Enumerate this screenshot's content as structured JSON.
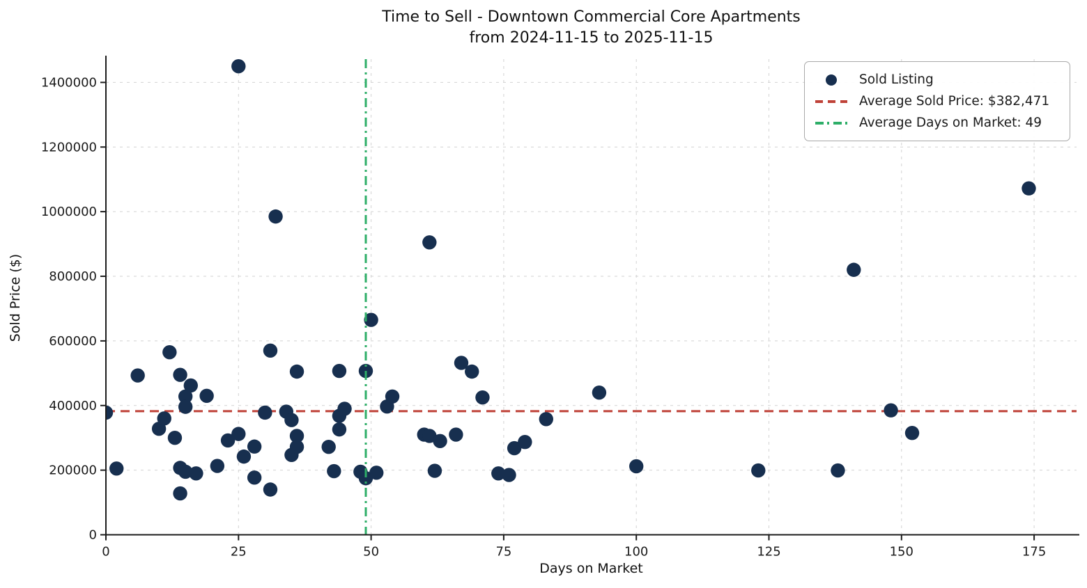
{
  "title": {
    "line1": "Time to Sell - Downtown Commercial Core Apartments",
    "line2": "from 2024-11-15 to 2025-11-15"
  },
  "colors": {
    "point": "#172f4f",
    "avg_price_line": "#bf4238",
    "avg_days_line": "#2eae68",
    "grid": "#d2d2d2",
    "spine": "#1c1c1c",
    "text": "#1a1a1a"
  },
  "chart_data": {
    "type": "scatter",
    "title": "Time to Sell - Downtown Commercial Core Apartments from 2024-11-15 to 2025-11-15",
    "xlabel": "Days on Market",
    "ylabel": "Sold Price ($)",
    "xlim": [
      0,
      183
    ],
    "ylim": [
      0,
      1472000
    ],
    "x_ticks": [
      0,
      25,
      50,
      75,
      100,
      125,
      150,
      175
    ],
    "y_ticks": [
      0,
      200000,
      400000,
      600000,
      800000,
      1000000,
      1200000,
      1400000
    ],
    "grid": true,
    "legend_position": "upper right",
    "series": [
      {
        "name": "Sold Listing",
        "type": "scatter",
        "color": "#172f4f",
        "points": [
          [
            0,
            378000
          ],
          [
            2,
            205000
          ],
          [
            6,
            493000
          ],
          [
            10,
            328000
          ],
          [
            11,
            360000
          ],
          [
            12,
            565000
          ],
          [
            13,
            300000
          ],
          [
            14,
            495000
          ],
          [
            14,
            207000
          ],
          [
            14,
            128000
          ],
          [
            15,
            428000
          ],
          [
            15,
            396000
          ],
          [
            15,
            195000
          ],
          [
            16,
            462000
          ],
          [
            17,
            190000
          ],
          [
            19,
            430000
          ],
          [
            21,
            213000
          ],
          [
            23,
            292000
          ],
          [
            25,
            1450000
          ],
          [
            25,
            312000
          ],
          [
            26,
            242000
          ],
          [
            28,
            273000
          ],
          [
            28,
            177000
          ],
          [
            30,
            378000
          ],
          [
            31,
            570000
          ],
          [
            31,
            140000
          ],
          [
            32,
            985000
          ],
          [
            34,
            381000
          ],
          [
            35,
            355000
          ],
          [
            35,
            247000
          ],
          [
            36,
            505000
          ],
          [
            36,
            306000
          ],
          [
            36,
            272000
          ],
          [
            42,
            272000
          ],
          [
            43,
            197000
          ],
          [
            44,
            507000
          ],
          [
            44,
            368000
          ],
          [
            44,
            326000
          ],
          [
            45,
            390000
          ],
          [
            48,
            195000
          ],
          [
            49,
            507000
          ],
          [
            49,
            175000
          ],
          [
            50,
            665000
          ],
          [
            51,
            192000
          ],
          [
            53,
            397000
          ],
          [
            54,
            428000
          ],
          [
            60,
            310000
          ],
          [
            61,
            905000
          ],
          [
            61,
            306000
          ],
          [
            62,
            198000
          ],
          [
            63,
            290000
          ],
          [
            66,
            310000
          ],
          [
            67,
            532000
          ],
          [
            69,
            505000
          ],
          [
            71,
            425000
          ],
          [
            74,
            190000
          ],
          [
            76,
            185000
          ],
          [
            77,
            268000
          ],
          [
            79,
            287000
          ],
          [
            83,
            358000
          ],
          [
            93,
            440000
          ],
          [
            100,
            212000
          ],
          [
            123,
            199000
          ],
          [
            138,
            199000
          ],
          [
            141,
            820000
          ],
          [
            148,
            385000
          ],
          [
            152,
            315000
          ],
          [
            174,
            1072000
          ]
        ]
      },
      {
        "name": "Average Sold Price: $382,471",
        "type": "hline",
        "value": 382471,
        "color": "#bf4238",
        "dash": "dashed"
      },
      {
        "name": "Average Days on Market: 49",
        "type": "vline",
        "value": 49,
        "color": "#2eae68",
        "dash": "dashdot"
      }
    ]
  }
}
